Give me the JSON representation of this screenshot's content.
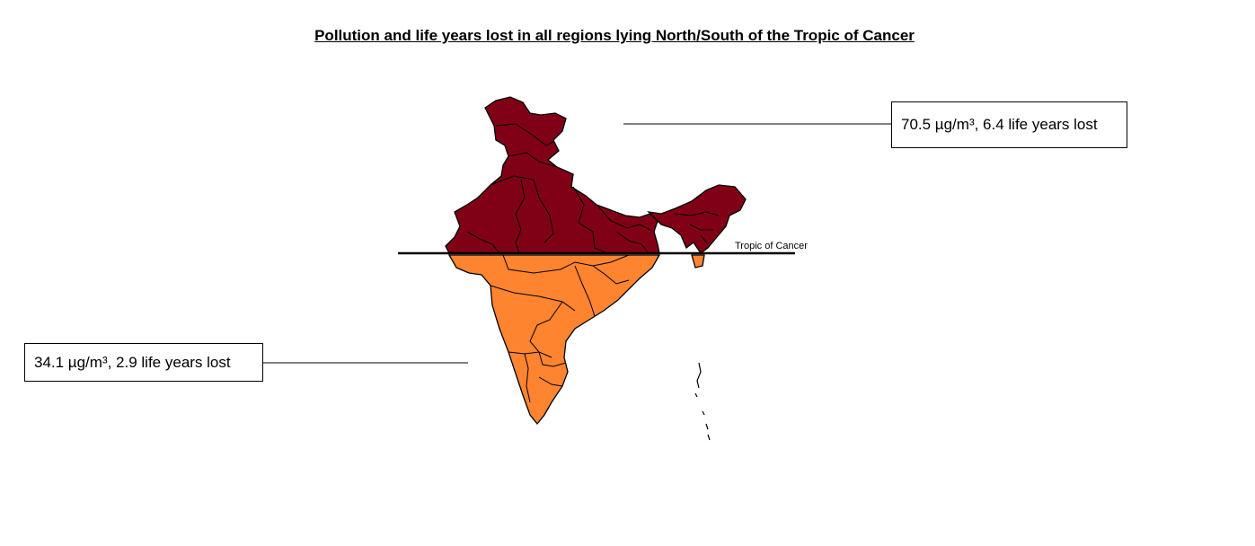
{
  "title": "Pollution and life years lost in all regions lying North/South of the Tropic of Cancer",
  "tropic_label": "Tropic of Cancer",
  "regions": {
    "north": {
      "label": "70.5 µg/m³, 6.4 life years lost",
      "pm25": 70.5,
      "pm25_unit": "µg/m³",
      "life_years_lost": 6.4,
      "color": "#800015"
    },
    "south": {
      "label": "34.1 µg/m³, 2.9 life years lost",
      "pm25": 34.1,
      "pm25_unit": "µg/m³",
      "life_years_lost": 2.9,
      "color": "#fe8430"
    }
  }
}
